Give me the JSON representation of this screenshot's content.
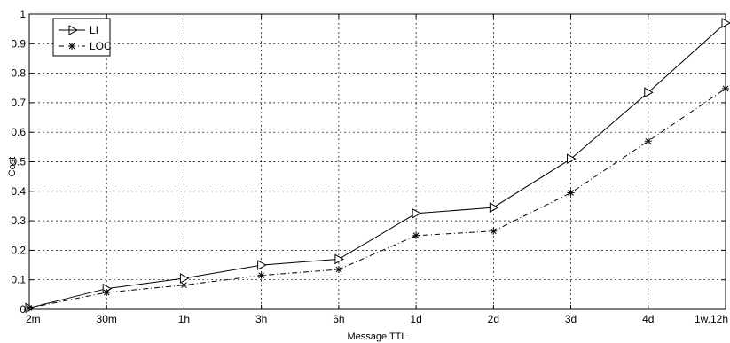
{
  "chart_data": {
    "type": "line",
    "title": "",
    "xlabel": "Message TTL",
    "ylabel": "Cost",
    "categories": [
      "2m",
      "30m",
      "1h",
      "3h",
      "6h",
      "1d",
      "2d",
      "3d",
      "4d",
      "1w.12h"
    ],
    "ylim": [
      0,
      1
    ],
    "yticks": [
      "0",
      "0.1",
      "0.2",
      "0.3",
      "0.4",
      "0.5",
      "0.6",
      "0.7",
      "0.8",
      "0.9",
      "1"
    ],
    "grid": true,
    "legend_position": "top-left",
    "series": [
      {
        "name": "LI",
        "marker": "triangle-right",
        "line_style": "solid",
        "color": "#000000",
        "values": [
          0.005,
          0.07,
          0.105,
          0.15,
          0.17,
          0.325,
          0.345,
          0.51,
          0.735,
          0.97
        ]
      },
      {
        "name": "LOC",
        "marker": "asterisk",
        "line_style": "dash-dot",
        "color": "#000000",
        "values": [
          0.005,
          0.057,
          0.082,
          0.115,
          0.135,
          0.25,
          0.265,
          0.395,
          0.57,
          0.748
        ]
      }
    ]
  }
}
